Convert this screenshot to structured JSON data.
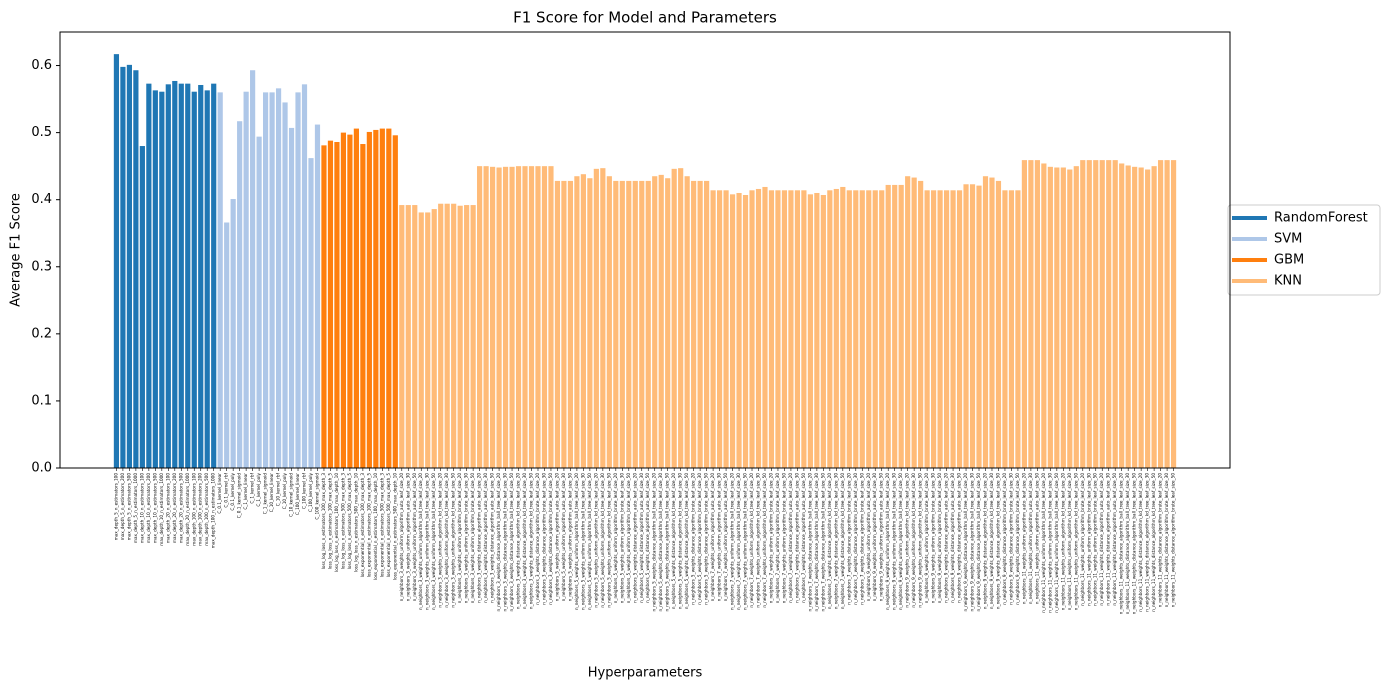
{
  "chart_data": {
    "type": "bar",
    "title": "F1 Score for Model and Parameters",
    "x_label": "Hyperparameters",
    "y_label": "Average F1 Score",
    "ylim": [
      0,
      0.65
    ],
    "yticks": [
      {
        "value": 0,
        "label": "0.0"
      },
      0.1,
      0.2,
      0.3,
      0.4,
      0.5,
      0.6
    ],
    "legend": "right",
    "series": [
      {
        "name": "RandomForest",
        "color": "#1f77b4",
        "categories": [
          "max_depth_5_n_estimators_100",
          "max_depth_5_n_estimators_200",
          "max_depth_5_n_estimators_500",
          "max_depth_5_n_estimators_1000",
          "max_depth_10_n_estimators_100",
          "max_depth_10_n_estimators_200",
          "max_depth_10_n_estimators_500",
          "max_depth_10_n_estimators_1000",
          "max_depth_20_n_estimators_100",
          "max_depth_20_n_estimators_200",
          "max_depth_20_n_estimators_500",
          "max_depth_20_n_estimators_1000",
          "max_depth_100_n_estimators_100",
          "max_depth_100_n_estimators_200",
          "max_depth_100_n_estimators_500",
          "max_depth_100_n_estimators_1000"
        ],
        "values": [
          0.617,
          0.598,
          0.601,
          0.593,
          0.48,
          0.573,
          0.563,
          0.561,
          0.572,
          0.577,
          0.573,
          0.573,
          0.561,
          0.571,
          0.563,
          0.573
        ]
      },
      {
        "name": "SVM",
        "color": "#aec7e8",
        "categories": [
          "C_0.1_kernel_linear",
          "C_0.1_kernel_rbf",
          "C_0.1_kernel_poly",
          "C_0.1_kernel_sigmoid",
          "C_1_kernel_linear",
          "C_1_kernel_rbf",
          "C_1_kernel_poly",
          "C_1_kernel_sigmoid",
          "C_10_kernel_linear",
          "C_10_kernel_rbf",
          "C_10_kernel_poly",
          "C_10_kernel_sigmoid",
          "C_100_kernel_linear",
          "C_100_kernel_rbf",
          "C_100_kernel_poly",
          "C_100_kernel_sigmoid"
        ],
        "values": [
          0.56,
          0.366,
          0.401,
          0.517,
          0.561,
          0.593,
          0.494,
          0.56,
          0.56,
          0.566,
          0.545,
          0.507,
          0.56,
          0.572,
          0.462,
          0.512
        ]
      },
      {
        "name": "GBM",
        "color": "#ff7f0e",
        "categories": [
          "loss_log_loss_n_estimators_100_max_depth_3",
          "loss_log_loss_n_estimators_100_max_depth_5",
          "loss_log_loss_n_estimators_100_max_depth_10",
          "loss_log_loss_n_estimators_500_max_depth_3",
          "loss_log_loss_n_estimators_500_max_depth_5",
          "loss_log_loss_n_estimators_500_max_depth_10",
          "loss_exponential_n_estimators_100_max_depth_3",
          "loss_exponential_n_estimators_100_max_depth_5",
          "loss_exponential_n_estimators_100_max_depth_10",
          "loss_exponential_n_estimators_500_max_depth_3",
          "loss_exponential_n_estimators_500_max_depth_5",
          "loss_exponential_n_estimators_500_max_depth_10"
        ],
        "values": [
          0.481,
          0.488,
          0.486,
          0.5,
          0.497,
          0.506,
          0.483,
          0.501,
          0.504,
          0.506,
          0.506,
          0.496
        ]
      },
      {
        "name": "KNN",
        "color": "#ffbb78",
        "categories": [
          "n_neighbors_3_weights_uniform_algorithm_auto_leaf_size_20",
          "n_neighbors_3_weights_uniform_algorithm_auto_leaf_size_30",
          "n_neighbors_3_weights_uniform_algorithm_auto_leaf_size_50",
          "n_neighbors_3_weights_uniform_algorithm_ball_tree_leaf_size_20",
          "n_neighbors_3_weights_uniform_algorithm_ball_tree_leaf_size_30",
          "n_neighbors_3_weights_uniform_algorithm_ball_tree_leaf_size_50",
          "n_neighbors_3_weights_uniform_algorithm_kd_tree_leaf_size_20",
          "n_neighbors_3_weights_uniform_algorithm_kd_tree_leaf_size_30",
          "n_neighbors_3_weights_uniform_algorithm_kd_tree_leaf_size_50",
          "n_neighbors_3_weights_uniform_algorithm_brute_leaf_size_20",
          "n_neighbors_3_weights_uniform_algorithm_brute_leaf_size_30",
          "n_neighbors_3_weights_uniform_algorithm_brute_leaf_size_50",
          "n_neighbors_3_weights_distance_algorithm_auto_leaf_size_20",
          "n_neighbors_3_weights_distance_algorithm_auto_leaf_size_30",
          "n_neighbors_3_weights_distance_algorithm_auto_leaf_size_50",
          "n_neighbors_3_weights_distance_algorithm_ball_tree_leaf_size_20",
          "n_neighbors_3_weights_distance_algorithm_ball_tree_leaf_size_30",
          "n_neighbors_3_weights_distance_algorithm_ball_tree_leaf_size_50",
          "n_neighbors_3_weights_distance_algorithm_kd_tree_leaf_size_20",
          "n_neighbors_3_weights_distance_algorithm_kd_tree_leaf_size_30",
          "n_neighbors_3_weights_distance_algorithm_kd_tree_leaf_size_50",
          "n_neighbors_3_weights_distance_algorithm_brute_leaf_size_20",
          "n_neighbors_3_weights_distance_algorithm_brute_leaf_size_30",
          "n_neighbors_3_weights_distance_algorithm_brute_leaf_size_50",
          "n_neighbors_5_weights_uniform_algorithm_auto_leaf_size_20",
          "n_neighbors_5_weights_uniform_algorithm_auto_leaf_size_30",
          "n_neighbors_5_weights_uniform_algorithm_auto_leaf_size_50",
          "n_neighbors_5_weights_uniform_algorithm_ball_tree_leaf_size_20",
          "n_neighbors_5_weights_uniform_algorithm_ball_tree_leaf_size_30",
          "n_neighbors_5_weights_uniform_algorithm_ball_tree_leaf_size_50",
          "n_neighbors_5_weights_uniform_algorithm_kd_tree_leaf_size_20",
          "n_neighbors_5_weights_uniform_algorithm_kd_tree_leaf_size_30",
          "n_neighbors_5_weights_uniform_algorithm_kd_tree_leaf_size_50",
          "n_neighbors_5_weights_uniform_algorithm_brute_leaf_size_20",
          "n_neighbors_5_weights_uniform_algorithm_brute_leaf_size_30",
          "n_neighbors_5_weights_uniform_algorithm_brute_leaf_size_50",
          "n_neighbors_5_weights_distance_algorithm_auto_leaf_size_20",
          "n_neighbors_5_weights_distance_algorithm_auto_leaf_size_30",
          "n_neighbors_5_weights_distance_algorithm_auto_leaf_size_50",
          "n_neighbors_5_weights_distance_algorithm_ball_tree_leaf_size_20",
          "n_neighbors_5_weights_distance_algorithm_ball_tree_leaf_size_30",
          "n_neighbors_5_weights_distance_algorithm_ball_tree_leaf_size_50",
          "n_neighbors_5_weights_distance_algorithm_kd_tree_leaf_size_20",
          "n_neighbors_5_weights_distance_algorithm_kd_tree_leaf_size_30",
          "n_neighbors_5_weights_distance_algorithm_kd_tree_leaf_size_50",
          "n_neighbors_5_weights_distance_algorithm_brute_leaf_size_20",
          "n_neighbors_5_weights_distance_algorithm_brute_leaf_size_30",
          "n_neighbors_5_weights_distance_algorithm_brute_leaf_size_50",
          "n_neighbors_7_weights_uniform_algorithm_auto_leaf_size_20",
          "n_neighbors_7_weights_uniform_algorithm_auto_leaf_size_30",
          "n_neighbors_7_weights_uniform_algorithm_auto_leaf_size_50",
          "n_neighbors_7_weights_uniform_algorithm_ball_tree_leaf_size_20",
          "n_neighbors_7_weights_uniform_algorithm_ball_tree_leaf_size_30",
          "n_neighbors_7_weights_uniform_algorithm_ball_tree_leaf_size_50",
          "n_neighbors_7_weights_uniform_algorithm_kd_tree_leaf_size_20",
          "n_neighbors_7_weights_uniform_algorithm_kd_tree_leaf_size_30",
          "n_neighbors_7_weights_uniform_algorithm_kd_tree_leaf_size_50",
          "n_neighbors_7_weights_uniform_algorithm_brute_leaf_size_20",
          "n_neighbors_7_weights_uniform_algorithm_brute_leaf_size_30",
          "n_neighbors_7_weights_uniform_algorithm_brute_leaf_size_50",
          "n_neighbors_7_weights_distance_algorithm_auto_leaf_size_20",
          "n_neighbors_7_weights_distance_algorithm_auto_leaf_size_30",
          "n_neighbors_7_weights_distance_algorithm_auto_leaf_size_50",
          "n_neighbors_7_weights_distance_algorithm_ball_tree_leaf_size_20",
          "n_neighbors_7_weights_distance_algorithm_ball_tree_leaf_size_30",
          "n_neighbors_7_weights_distance_algorithm_ball_tree_leaf_size_50",
          "n_neighbors_7_weights_distance_algorithm_kd_tree_leaf_size_20",
          "n_neighbors_7_weights_distance_algorithm_kd_tree_leaf_size_30",
          "n_neighbors_7_weights_distance_algorithm_kd_tree_leaf_size_50",
          "n_neighbors_7_weights_distance_algorithm_brute_leaf_size_20",
          "n_neighbors_7_weights_distance_algorithm_brute_leaf_size_30",
          "n_neighbors_7_weights_distance_algorithm_brute_leaf_size_50",
          "n_neighbors_9_weights_uniform_algorithm_auto_leaf_size_20",
          "n_neighbors_9_weights_uniform_algorithm_auto_leaf_size_30",
          "n_neighbors_9_weights_uniform_algorithm_auto_leaf_size_50",
          "n_neighbors_9_weights_uniform_algorithm_ball_tree_leaf_size_20",
          "n_neighbors_9_weights_uniform_algorithm_ball_tree_leaf_size_30",
          "n_neighbors_9_weights_uniform_algorithm_ball_tree_leaf_size_50",
          "n_neighbors_9_weights_uniform_algorithm_kd_tree_leaf_size_20",
          "n_neighbors_9_weights_uniform_algorithm_kd_tree_leaf_size_30",
          "n_neighbors_9_weights_uniform_algorithm_kd_tree_leaf_size_50",
          "n_neighbors_9_weights_uniform_algorithm_brute_leaf_size_20",
          "n_neighbors_9_weights_uniform_algorithm_brute_leaf_size_30",
          "n_neighbors_9_weights_uniform_algorithm_brute_leaf_size_50",
          "n_neighbors_9_weights_distance_algorithm_auto_leaf_size_20",
          "n_neighbors_9_weights_distance_algorithm_auto_leaf_size_30",
          "n_neighbors_9_weights_distance_algorithm_auto_leaf_size_50",
          "n_neighbors_9_weights_distance_algorithm_ball_tree_leaf_size_20",
          "n_neighbors_9_weights_distance_algorithm_ball_tree_leaf_size_30",
          "n_neighbors_9_weights_distance_algorithm_ball_tree_leaf_size_50",
          "n_neighbors_9_weights_distance_algorithm_kd_tree_leaf_size_20",
          "n_neighbors_9_weights_distance_algorithm_kd_tree_leaf_size_30",
          "n_neighbors_9_weights_distance_algorithm_kd_tree_leaf_size_50",
          "n_neighbors_9_weights_distance_algorithm_brute_leaf_size_20",
          "n_neighbors_9_weights_distance_algorithm_brute_leaf_size_30",
          "n_neighbors_9_weights_distance_algorithm_brute_leaf_size_50",
          "n_neighbors_11_weights_uniform_algorithm_auto_leaf_size_20",
          "n_neighbors_11_weights_uniform_algorithm_auto_leaf_size_30",
          "n_neighbors_11_weights_uniform_algorithm_auto_leaf_size_50",
          "n_neighbors_11_weights_uniform_algorithm_ball_tree_leaf_size_20",
          "n_neighbors_11_weights_uniform_algorithm_ball_tree_leaf_size_30",
          "n_neighbors_11_weights_uniform_algorithm_ball_tree_leaf_size_50",
          "n_neighbors_11_weights_uniform_algorithm_kd_tree_leaf_size_20",
          "n_neighbors_11_weights_uniform_algorithm_kd_tree_leaf_size_30",
          "n_neighbors_11_weights_uniform_algorithm_kd_tree_leaf_size_50",
          "n_neighbors_11_weights_uniform_algorithm_brute_leaf_size_20",
          "n_neighbors_11_weights_uniform_algorithm_brute_leaf_size_30",
          "n_neighbors_11_weights_uniform_algorithm_brute_leaf_size_50",
          "n_neighbors_11_weights_distance_algorithm_auto_leaf_size_20",
          "n_neighbors_11_weights_distance_algorithm_auto_leaf_size_30",
          "n_neighbors_11_weights_distance_algorithm_auto_leaf_size_50",
          "n_neighbors_11_weights_distance_algorithm_ball_tree_leaf_size_20",
          "n_neighbors_11_weights_distance_algorithm_ball_tree_leaf_size_30",
          "n_neighbors_11_weights_distance_algorithm_ball_tree_leaf_size_50",
          "n_neighbors_11_weights_distance_algorithm_kd_tree_leaf_size_20",
          "n_neighbors_11_weights_distance_algorithm_kd_tree_leaf_size_30",
          "n_neighbors_11_weights_distance_algorithm_kd_tree_leaf_size_50",
          "n_neighbors_11_weights_distance_algorithm_brute_leaf_size_20",
          "n_neighbors_11_weights_distance_algorithm_brute_leaf_size_30",
          "n_neighbors_11_weights_distance_algorithm_brute_leaf_size_50"
        ],
        "values": [
          0.392,
          0.392,
          0.392,
          0.381,
          0.381,
          0.386,
          0.394,
          0.394,
          0.394,
          0.391,
          0.392,
          0.392,
          0.45,
          0.45,
          0.449,
          0.448,
          0.449,
          0.449,
          0.45,
          0.45,
          0.45,
          0.45,
          0.45,
          0.45,
          0.428,
          0.428,
          0.428,
          0.435,
          0.438,
          0.432,
          0.446,
          0.447,
          0.435,
          0.428,
          0.428,
          0.428,
          0.428,
          0.428,
          0.428,
          0.435,
          0.437,
          0.432,
          0.446,
          0.447,
          0.435,
          0.428,
          0.428,
          0.428,
          0.414,
          0.414,
          0.414,
          0.408,
          0.41,
          0.407,
          0.414,
          0.416,
          0.419,
          0.414,
          0.414,
          0.414,
          0.414,
          0.414,
          0.414,
          0.408,
          0.41,
          0.407,
          0.414,
          0.416,
          0.419,
          0.414,
          0.414,
          0.414,
          0.414,
          0.414,
          0.414,
          0.422,
          0.422,
          0.422,
          0.435,
          0.433,
          0.428,
          0.414,
          0.414,
          0.414,
          0.414,
          0.414,
          0.414,
          0.423,
          0.423,
          0.421,
          0.435,
          0.433,
          0.428,
          0.414,
          0.414,
          0.414,
          0.459,
          0.459,
          0.459,
          0.454,
          0.449,
          0.448,
          0.448,
          0.445,
          0.45,
          0.459,
          0.459,
          0.459,
          0.459,
          0.459,
          0.459,
          0.454,
          0.451,
          0.449,
          0.448,
          0.445,
          0.45,
          0.459,
          0.459,
          0.459
        ]
      }
    ]
  }
}
